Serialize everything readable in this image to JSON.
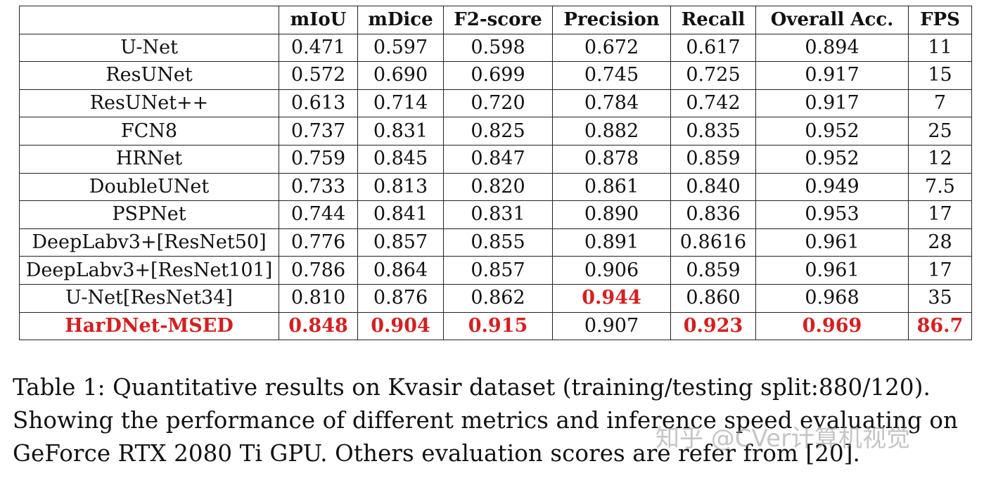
{
  "table": {
    "headers": [
      "",
      "mIoU",
      "mDice",
      "F2-score",
      "Precision",
      "Recall",
      "Overall  Acc.",
      "FPS"
    ],
    "rows": [
      {
        "model": "U-Net",
        "values": [
          "0.471",
          "0.597",
          "0.598",
          "0.672",
          "0.617",
          "0.894",
          "11"
        ]
      },
      {
        "model": "ResUNet",
        "values": [
          "0.572",
          "0.690",
          "0.699",
          "0.745",
          "0.725",
          "0.917",
          "15"
        ]
      },
      {
        "model": "ResUNet++",
        "values": [
          "0.613",
          "0.714",
          "0.720",
          "0.784",
          "0.742",
          "0.917",
          "7"
        ]
      },
      {
        "model": "FCN8",
        "values": [
          "0.737",
          "0.831",
          "0.825",
          "0.882",
          "0.835",
          "0.952",
          "25"
        ]
      },
      {
        "model": "HRNet",
        "values": [
          "0.759",
          "0.845",
          "0.847",
          "0.878",
          "0.859",
          "0.952",
          "12"
        ]
      },
      {
        "model": "DoubleUNet",
        "values": [
          "0.733",
          "0.813",
          "0.820",
          "0.861",
          "0.840",
          "0.949",
          "7.5"
        ]
      },
      {
        "model": "PSPNet",
        "values": [
          "0.744",
          "0.841",
          "0.831",
          "0.890",
          "0.836",
          "0.953",
          "17"
        ]
      },
      {
        "model": "DeepLabv3+[ResNet50]",
        "values": [
          "0.776",
          "0.857",
          "0.855",
          "0.891",
          "0.8616",
          "0.961",
          "28"
        ]
      },
      {
        "model": "DeepLabv3+[ResNet101]",
        "values": [
          "0.786",
          "0.864",
          "0.857",
          "0.906",
          "0.859",
          "0.961",
          "17"
        ]
      },
      {
        "model": "U-Net[ResNet34]",
        "values": [
          "0.810",
          "0.876",
          "0.862",
          "0.944",
          "0.860",
          "0.968",
          "35"
        ]
      },
      {
        "model": "HarDNet-MSED",
        "values": [
          "0.848",
          "0.904",
          "0.915",
          "0.907",
          "0.923",
          "0.969",
          "86.7"
        ]
      }
    ]
  },
  "highlight_color": "#d42020",
  "caption": {
    "line1": "Table 1: Quantitative results on Kvasir dataset (training/testing split:880/120).",
    "line2": "Showing the performance of different metrics and inference speed evaluating on",
    "line3": "GeForce RTX 2080 Ti GPU. Others evaluation scores are refer from [20]."
  },
  "watermark": "知乎 @CVer计算机视觉"
}
